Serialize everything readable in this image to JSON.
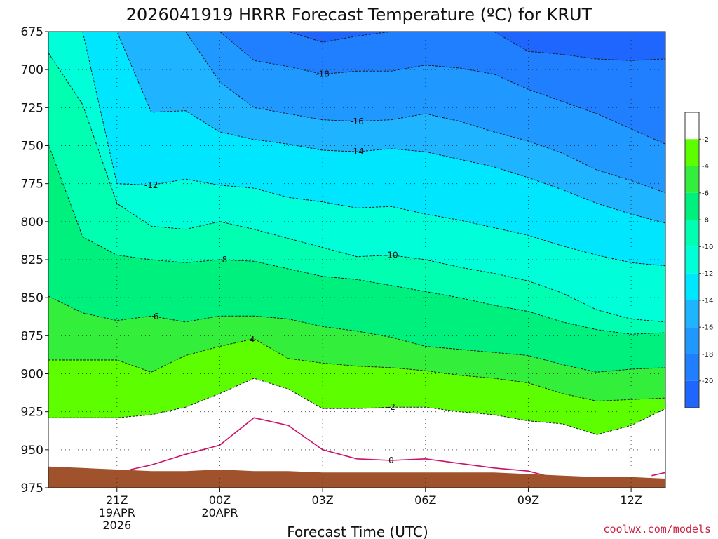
{
  "title": "2026041919 HRRR Forecast Temperature (ºC) for KRUT",
  "credit": "coolwx.com/models",
  "colors": {
    "credit": "#cc2244",
    "terrain": "#a0522d",
    "freezing_line": "#cc1166",
    "bands": [
      "#1f66ff",
      "#1f7fff",
      "#1f99ff",
      "#1fb4ff",
      "#00e6ff",
      "#00ffd9",
      "#00ffb0",
      "#00f07d",
      "#33ee3a",
      "#5dff00",
      "#ffffff"
    ]
  },
  "chart_data": {
    "type": "contour",
    "xlabel": "Forecast Time (UTC)",
    "ylabel": "",
    "y_scale": "pressure (hPa), increasing downward",
    "ylim": [
      675,
      975
    ],
    "y_ticks": [
      "675",
      "700",
      "725",
      "750",
      "775",
      "800",
      "825",
      "850",
      "875",
      "900",
      "925",
      "950",
      "975"
    ],
    "x_range_hours": [
      19,
      37
    ],
    "x_ticks": [
      {
        "hour": 21,
        "label": "21Z",
        "sub": [
          "19APR",
          "2026"
        ]
      },
      {
        "hour": 24,
        "label": "00Z",
        "sub": [
          "20APR"
        ]
      },
      {
        "hour": 27,
        "label": "03Z",
        "sub": []
      },
      {
        "hour": 30,
        "label": "06Z",
        "sub": []
      },
      {
        "hour": 33,
        "label": "09Z",
        "sub": []
      },
      {
        "hour": 36,
        "label": "12Z",
        "sub": []
      }
    ],
    "grid": true,
    "grid_style": "dotted",
    "contour_hours": [
      19,
      20,
      21,
      22,
      23,
      24,
      25,
      26,
      27,
      28,
      29,
      30,
      31,
      32,
      33,
      34,
      35,
      36,
      37
    ],
    "isotherms": [
      {
        "t": -2,
        "label": "-2",
        "p": [
          929,
          929,
          929,
          927,
          922,
          913,
          903,
          910,
          923,
          923,
          922,
          922,
          925,
          927,
          931,
          933,
          940,
          934,
          923
        ]
      },
      {
        "t": -4,
        "label": "-4",
        "p": [
          891,
          891,
          891,
          899,
          888,
          882,
          877,
          890,
          893,
          895,
          896,
          898,
          901,
          903,
          906,
          913,
          918,
          917,
          916
        ]
      },
      {
        "t": -6,
        "label": "-6",
        "p": [
          849,
          860,
          865,
          862,
          866,
          862,
          862,
          864,
          869,
          872,
          876,
          882,
          884,
          886,
          888,
          894,
          899,
          897,
          896
        ]
      },
      {
        "t": -8,
        "label": "-8",
        "p": [
          749,
          810,
          822,
          825,
          827,
          825,
          826,
          831,
          836,
          838,
          842,
          846,
          850,
          855,
          859,
          866,
          871,
          874,
          873
        ]
      },
      {
        "t": -10,
        "label": "-10",
        "p": [
          689,
          723,
          788,
          803,
          805,
          800,
          805,
          811,
          817,
          823,
          822,
          825,
          830,
          834,
          839,
          847,
          858,
          864,
          866
        ]
      },
      {
        "t": -12,
        "label": "-12",
        "p": [
          675,
          675,
          775,
          776,
          772,
          776,
          778,
          784,
          787,
          791,
          790,
          795,
          799,
          804,
          809,
          816,
          822,
          827,
          829
        ]
      },
      {
        "t": -14,
        "label": "-14",
        "p": [
          675,
          675,
          675,
          728,
          727,
          741,
          746,
          749,
          753,
          754,
          752,
          754,
          759,
          764,
          771,
          779,
          788,
          795,
          801
        ]
      },
      {
        "t": -16,
        "label": "-16",
        "p": [
          675,
          675,
          675,
          675,
          675,
          708,
          725,
          729,
          733,
          734,
          733,
          729,
          734,
          741,
          747,
          755,
          766,
          773,
          781
        ]
      },
      {
        "t": -18,
        "label": "-18",
        "p": [
          675,
          675,
          675,
          675,
          675,
          675,
          694,
          698,
          703,
          701,
          701,
          697,
          699,
          703,
          713,
          721,
          729,
          739,
          749
        ]
      },
      {
        "t": -20,
        "label": "",
        "p": [
          675,
          675,
          675,
          675,
          675,
          675,
          675,
          675,
          682,
          678,
          675,
          675,
          675,
          675,
          688,
          690,
          693,
          694,
          693
        ]
      }
    ],
    "isotherm_labels": [
      {
        "t": -2,
        "hour": 29,
        "text": "-2"
      },
      {
        "t": -4,
        "hour": 24.9,
        "text": "-4"
      },
      {
        "t": -6,
        "hour": 22.1,
        "text": "-6"
      },
      {
        "t": -8,
        "hour": 24.1,
        "text": "-8"
      },
      {
        "t": -10,
        "hour": 29,
        "text": "-10"
      },
      {
        "t": -12,
        "hour": 22,
        "text": "-12"
      },
      {
        "t": -14,
        "hour": 28,
        "text": "-14"
      },
      {
        "t": -16,
        "hour": 28,
        "text": "-16"
      },
      {
        "t": -18,
        "hour": 27,
        "text": "-18"
      }
    ],
    "freezing_line": {
      "label": "0",
      "hours": [
        21.4,
        22,
        23,
        24,
        25,
        26,
        27,
        28,
        29,
        30,
        31,
        32,
        33,
        33.5
      ],
      "p": [
        963,
        960,
        953,
        947,
        929,
        934,
        950,
        956,
        957,
        956,
        959,
        962,
        964,
        967
      ],
      "tail_hours": [
        36.6,
        37
      ],
      "tail_p": [
        967,
        965
      ],
      "label_hour": 29
    },
    "terrain": {
      "hours": [
        19,
        20,
        21,
        22,
        23,
        24,
        25,
        26,
        27,
        28,
        29,
        30,
        31,
        32,
        33,
        34,
        35,
        36,
        37
      ],
      "p": [
        961,
        962,
        963,
        964,
        964,
        963,
        964,
        964,
        965,
        965,
        965,
        965,
        965,
        965,
        966,
        967,
        968,
        968,
        969
      ],
      "label": "0"
    },
    "colorbar": {
      "labels": [
        "-2",
        "-4",
        "-6",
        "-8",
        "-10",
        "-12",
        "-14",
        "-16",
        "-18",
        "-20"
      ]
    }
  }
}
